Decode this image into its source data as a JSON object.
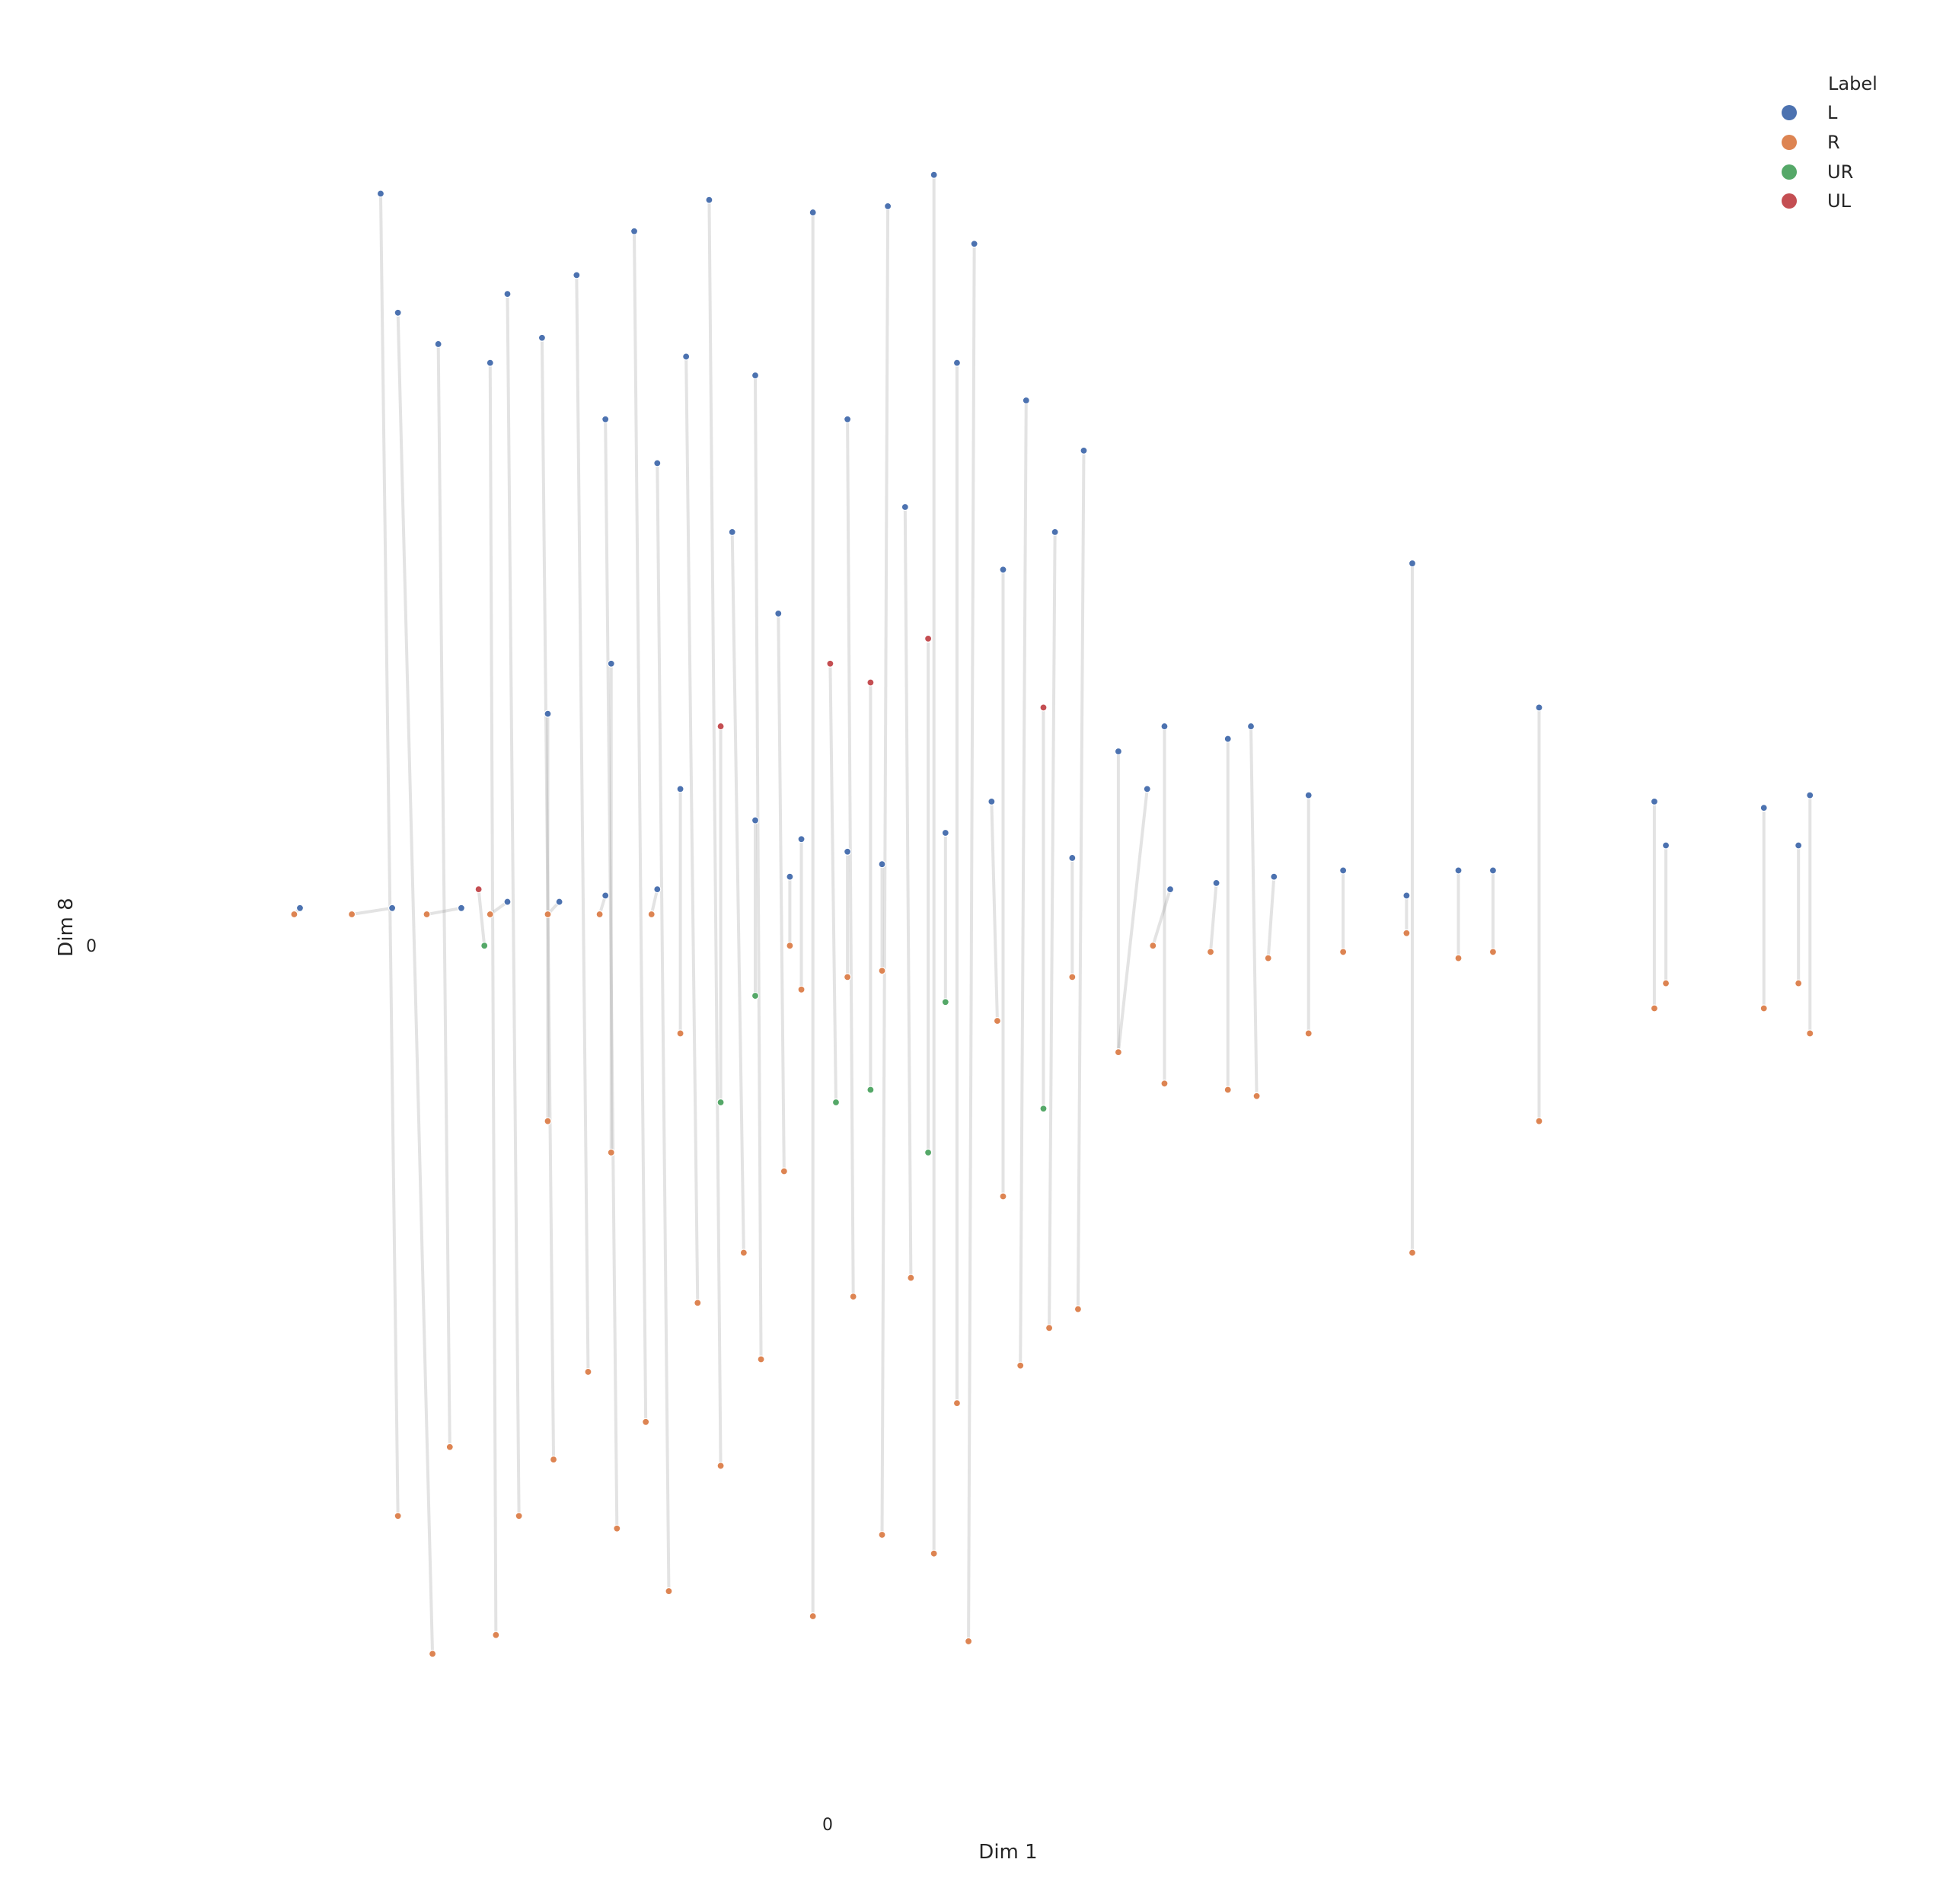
{
  "chart_data": {
    "type": "scatter",
    "title": "",
    "xlabel": "Dim 1",
    "ylabel": "Dim 8",
    "x_ticks": [
      "0"
    ],
    "y_ticks": [
      "0"
    ],
    "xlim": [
      -1.1,
      1.76
    ],
    "ylim": [
      -1.25,
      1.21
    ],
    "grid": false,
    "connector_lines": true,
    "connector_color": "#808080",
    "legend": {
      "title": "Label",
      "placement": "top-right",
      "entries": [
        {
          "label": "L",
          "color": "#4c72b0"
        },
        {
          "label": "R",
          "color": "#dd8452"
        },
        {
          "label": "UR",
          "color": "#55a868"
        },
        {
          "label": "UL",
          "color": "#c44e52"
        }
      ]
    },
    "pairs": [
      {
        "from": [
          -0.75,
          1.15
        ],
        "to": [
          -0.72,
          -0.96
        ],
        "from_label": "L",
        "to_label": "R"
      },
      {
        "from": [
          -0.72,
          0.96
        ],
        "to": [
          -0.66,
          -1.18
        ],
        "from_label": "L",
        "to_label": "R"
      },
      {
        "from": [
          -0.65,
          0.91
        ],
        "to": [
          -0.63,
          -0.85
        ],
        "from_label": "L",
        "to_label": "R"
      },
      {
        "from": [
          -0.56,
          0.88
        ],
        "to": [
          -0.55,
          -1.15
        ],
        "from_label": "L",
        "to_label": "R"
      },
      {
        "from": [
          -0.53,
          0.99
        ],
        "to": [
          -0.51,
          -0.96
        ],
        "from_label": "L",
        "to_label": "R"
      },
      {
        "from": [
          -0.47,
          0.92
        ],
        "to": [
          -0.45,
          -0.87
        ],
        "from_label": "L",
        "to_label": "R"
      },
      {
        "from": [
          -0.41,
          1.02
        ],
        "to": [
          -0.39,
          -0.73
        ],
        "from_label": "L",
        "to_label": "R"
      },
      {
        "from": [
          -0.36,
          0.79
        ],
        "to": [
          -0.34,
          -0.98
        ],
        "from_label": "L",
        "to_label": "R"
      },
      {
        "from": [
          -0.31,
          1.09
        ],
        "to": [
          -0.29,
          -0.81
        ],
        "from_label": "L",
        "to_label": "R"
      },
      {
        "from": [
          -0.27,
          0.72
        ],
        "to": [
          -0.25,
          -1.08
        ],
        "from_label": "L",
        "to_label": "R"
      },
      {
        "from": [
          -0.22,
          0.89
        ],
        "to": [
          -0.2,
          -0.62
        ],
        "from_label": "L",
        "to_label": "R"
      },
      {
        "from": [
          -0.18,
          1.14
        ],
        "to": [
          -0.16,
          -0.88
        ],
        "from_label": "L",
        "to_label": "R"
      },
      {
        "from": [
          -0.14,
          0.61
        ],
        "to": [
          -0.12,
          -0.54
        ],
        "from_label": "L",
        "to_label": "R"
      },
      {
        "from": [
          -0.1,
          0.86
        ],
        "to": [
          -0.09,
          -0.71
        ],
        "from_label": "L",
        "to_label": "R"
      },
      {
        "from": [
          -0.06,
          0.48
        ],
        "to": [
          -0.05,
          -0.41
        ],
        "from_label": "L",
        "to_label": "R"
      },
      {
        "from": [
          0.0,
          1.12
        ],
        "to": [
          0.0,
          -1.12
        ],
        "from_label": "L",
        "to_label": "R"
      },
      {
        "from": [
          0.03,
          0.4
        ],
        "to": [
          0.04,
          -0.3
        ],
        "from_label": "UL",
        "to_label": "UR"
      },
      {
        "from": [
          0.06,
          0.79
        ],
        "to": [
          0.07,
          -0.61
        ],
        "from_label": "L",
        "to_label": "R"
      },
      {
        "from": [
          0.1,
          0.37
        ],
        "to": [
          0.1,
          -0.28
        ],
        "from_label": "UL",
        "to_label": "UR"
      },
      {
        "from": [
          0.13,
          1.13
        ],
        "to": [
          0.12,
          -0.99
        ],
        "from_label": "L",
        "to_label": "R"
      },
      {
        "from": [
          0.16,
          0.65
        ],
        "to": [
          0.17,
          -0.58
        ],
        "from_label": "L",
        "to_label": "R"
      },
      {
        "from": [
          0.2,
          0.44
        ],
        "to": [
          0.2,
          -0.38
        ],
        "from_label": "UL",
        "to_label": "UR"
      },
      {
        "from": [
          0.21,
          1.18
        ],
        "to": [
          0.21,
          -1.02
        ],
        "from_label": "L",
        "to_label": "R"
      },
      {
        "from": [
          0.25,
          0.88
        ],
        "to": [
          0.25,
          -0.78
        ],
        "from_label": "L",
        "to_label": "R"
      },
      {
        "from": [
          0.28,
          1.07
        ],
        "to": [
          0.27,
          -1.16
        ],
        "from_label": "L",
        "to_label": "R"
      },
      {
        "from": [
          0.33,
          0.55
        ],
        "to": [
          0.33,
          -0.45
        ],
        "from_label": "L",
        "to_label": "R"
      },
      {
        "from": [
          0.37,
          0.82
        ],
        "to": [
          0.36,
          -0.72
        ],
        "from_label": "L",
        "to_label": "R"
      },
      {
        "from": [
          0.42,
          0.61
        ],
        "to": [
          0.41,
          -0.66
        ],
        "from_label": "L",
        "to_label": "R"
      },
      {
        "from": [
          0.47,
          0.74
        ],
        "to": [
          0.46,
          -0.63
        ],
        "from_label": "L",
        "to_label": "R"
      },
      {
        "from": [
          0.53,
          0.26
        ],
        "to": [
          0.53,
          -0.22
        ],
        "from_label": "L",
        "to_label": "R"
      },
      {
        "from": [
          0.61,
          0.3
        ],
        "to": [
          0.61,
          -0.27
        ],
        "from_label": "L",
        "to_label": "R"
      },
      {
        "from": [
          0.72,
          0.28
        ],
        "to": [
          0.72,
          -0.28
        ],
        "from_label": "L",
        "to_label": "R"
      },
      {
        "from": [
          0.86,
          0.19
        ],
        "to": [
          0.86,
          -0.19
        ],
        "from_label": "L",
        "to_label": "R"
      },
      {
        "from": [
          1.04,
          0.56
        ],
        "to": [
          1.04,
          -0.54
        ],
        "from_label": "L",
        "to_label": "R"
      },
      {
        "from": [
          1.26,
          0.33
        ],
        "to": [
          1.26,
          -0.33
        ],
        "from_label": "L",
        "to_label": "R"
      },
      {
        "from": [
          1.46,
          0.18
        ],
        "to": [
          1.46,
          -0.15
        ],
        "from_label": "L",
        "to_label": "R"
      },
      {
        "from": [
          1.48,
          0.11
        ],
        "to": [
          1.48,
          -0.11
        ],
        "from_label": "L",
        "to_label": "R"
      },
      {
        "from": [
          1.65,
          0.17
        ],
        "to": [
          1.65,
          -0.15
        ],
        "from_label": "L",
        "to_label": "R"
      },
      {
        "from": [
          1.71,
          0.11
        ],
        "to": [
          1.71,
          -0.11
        ],
        "from_label": "L",
        "to_label": "R"
      },
      {
        "from": [
          1.73,
          0.19
        ],
        "to": [
          1.73,
          -0.19
        ],
        "from_label": "L",
        "to_label": "R"
      },
      {
        "from": [
          -0.89,
          0.01
        ],
        "to": [
          -0.9,
          0.0
        ],
        "from_label": "L",
        "to_label": "R"
      },
      {
        "from": [
          -0.73,
          0.01
        ],
        "to": [
          -0.8,
          0.0
        ],
        "from_label": "L",
        "to_label": "R"
      },
      {
        "from": [
          -0.61,
          0.01
        ],
        "to": [
          -0.67,
          0.0
        ],
        "from_label": "L",
        "to_label": "R"
      },
      {
        "from": [
          -0.53,
          0.02
        ],
        "to": [
          -0.56,
          0.0
        ],
        "from_label": "L",
        "to_label": "R"
      },
      {
        "from": [
          -0.44,
          0.02
        ],
        "to": [
          -0.46,
          0.0
        ],
        "from_label": "L",
        "to_label": "R"
      },
      {
        "from": [
          -0.36,
          0.03
        ],
        "to": [
          -0.37,
          0.0
        ],
        "from_label": "L",
        "to_label": "R"
      },
      {
        "from": [
          -0.27,
          0.04
        ],
        "to": [
          -0.28,
          0.0
        ],
        "from_label": "L",
        "to_label": "R"
      },
      {
        "from": [
          0.58,
          0.2
        ],
        "to": [
          0.53,
          -0.22
        ],
        "from_label": "L",
        "to_label": "R"
      },
      {
        "from": [
          0.62,
          0.04
        ],
        "to": [
          0.59,
          -0.05
        ],
        "from_label": "L",
        "to_label": "R"
      },
      {
        "from": [
          0.7,
          0.05
        ],
        "to": [
          0.69,
          -0.06
        ],
        "from_label": "L",
        "to_label": "R"
      },
      {
        "from": [
          0.8,
          0.06
        ],
        "to": [
          0.79,
          -0.07
        ],
        "from_label": "L",
        "to_label": "R"
      },
      {
        "from": [
          0.92,
          0.07
        ],
        "to": [
          0.92,
          -0.06
        ],
        "from_label": "L",
        "to_label": "R"
      },
      {
        "from": [
          1.03,
          0.03
        ],
        "to": [
          1.03,
          -0.03
        ],
        "from_label": "L",
        "to_label": "R"
      },
      {
        "from": [
          1.12,
          0.07
        ],
        "to": [
          1.12,
          -0.07
        ],
        "from_label": "L",
        "to_label": "R"
      },
      {
        "from": [
          1.18,
          0.07
        ],
        "to": [
          1.18,
          -0.06
        ],
        "from_label": "L",
        "to_label": "R"
      },
      {
        "from": [
          0.76,
          0.3
        ],
        "to": [
          0.77,
          -0.29
        ],
        "from_label": "L",
        "to_label": "R"
      },
      {
        "from": [
          0.4,
          0.33
        ],
        "to": [
          0.4,
          -0.31
        ],
        "from_label": "UL",
        "to_label": "UR"
      },
      {
        "from": [
          -0.16,
          0.3
        ],
        "to": [
          -0.16,
          -0.3
        ],
        "from_label": "UL",
        "to_label": "UR"
      },
      {
        "from": [
          -0.35,
          0.4
        ],
        "to": [
          -0.35,
          -0.38
        ],
        "from_label": "L",
        "to_label": "R"
      },
      {
        "from": [
          -0.46,
          0.32
        ],
        "to": [
          -0.46,
          -0.33
        ],
        "from_label": "L",
        "to_label": "R"
      },
      {
        "from": [
          -0.58,
          0.04
        ],
        "to": [
          -0.57,
          -0.05
        ],
        "from_label": "UL",
        "to_label": "UR"
      },
      {
        "from": [
          0.06,
          0.1
        ],
        "to": [
          0.06,
          -0.1
        ],
        "from_label": "L",
        "to_label": "R"
      },
      {
        "from": [
          -0.02,
          0.12
        ],
        "to": [
          -0.02,
          -0.12
        ],
        "from_label": "L",
        "to_label": "R"
      },
      {
        "from": [
          0.12,
          0.08
        ],
        "to": [
          0.12,
          -0.09
        ],
        "from_label": "L",
        "to_label": "R"
      },
      {
        "from": [
          0.23,
          0.13
        ],
        "to": [
          0.23,
          -0.14
        ],
        "from_label": "L",
        "to_label": "UR"
      },
      {
        "from": [
          -0.1,
          0.15
        ],
        "to": [
          -0.1,
          -0.13
        ],
        "from_label": "L",
        "to_label": "UR"
      },
      {
        "from": [
          0.31,
          0.18
        ],
        "to": [
          0.32,
          -0.17
        ],
        "from_label": "L",
        "to_label": "R"
      },
      {
        "from": [
          -0.23,
          0.2
        ],
        "to": [
          -0.23,
          -0.19
        ],
        "from_label": "L",
        "to_label": "R"
      },
      {
        "from": [
          0.45,
          0.09
        ],
        "to": [
          0.45,
          -0.1
        ],
        "from_label": "L",
        "to_label": "R"
      },
      {
        "from": [
          -0.04,
          0.06
        ],
        "to": [
          -0.04,
          -0.05
        ],
        "from_label": "L",
        "to_label": "R"
      }
    ]
  }
}
